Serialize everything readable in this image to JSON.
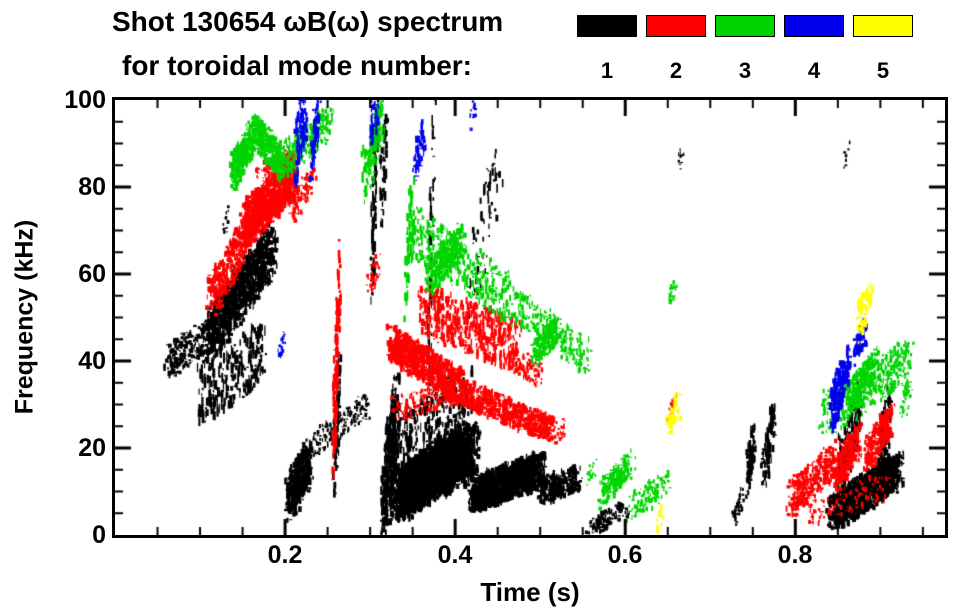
{
  "header": {
    "title_line1": "Shot 130654 ωB(ω) spectrum",
    "title_line2": "for toroidal mode number:"
  },
  "legend": {
    "items": [
      {
        "label": "1",
        "color": "#000000"
      },
      {
        "label": "2",
        "color": "#ff0000"
      },
      {
        "label": "3",
        "color": "#00d400"
      },
      {
        "label": "4",
        "color": "#0000ee"
      },
      {
        "label": "5",
        "color": "#ffff00"
      }
    ]
  },
  "axes": {
    "xlabel": "Time (s)",
    "ylabel": "Frequency (kHz)",
    "xtick_labels": [
      "0.2",
      "0.4",
      "0.6",
      "0.8"
    ],
    "ytick_labels": [
      "0",
      "20",
      "40",
      "60",
      "80",
      "100"
    ]
  },
  "chart_data": {
    "type": "scatter",
    "title": "Shot 130654 ωB(ω) spectrum for toroidal mode number",
    "xlabel": "Time (s)",
    "ylabel": "Frequency (kHz)",
    "xlim": [
      0,
      0.976
    ],
    "ylim": [
      0,
      100
    ],
    "xticks": [
      0.2,
      0.4,
      0.6,
      0.8
    ],
    "yticks": [
      0,
      20,
      40,
      60,
      80,
      100
    ],
    "x_minor_step": 0.05,
    "y_minor_step": 5,
    "grid": false,
    "legend_position": "top-right",
    "stroke_format": "[t_start,t_end,f_start,f_end,count,t_jitter,f_jitter,max_w_px,max_h_px]",
    "series": [
      {
        "name": "n=1",
        "color": "#000000",
        "strokes": [
          [
            0.062,
            0.115,
            40,
            46,
            260,
            0.005,
            4,
            3,
            4
          ],
          [
            0.112,
            0.185,
            46,
            66,
            1100,
            0.007,
            6,
            3,
            6
          ],
          [
            0.1,
            0.175,
            32,
            42,
            260,
            0.004,
            7,
            2,
            10
          ],
          [
            0.128,
            0.133,
            70,
            74,
            12,
            0.002,
            2,
            2,
            3
          ],
          [
            0.205,
            0.228,
            8,
            17,
            420,
            0.006,
            5,
            3,
            6
          ],
          [
            0.235,
            0.298,
            21,
            30,
            160,
            0.004,
            3,
            2,
            4
          ],
          [
            0.258,
            0.264,
            16,
            34,
            70,
            0.002,
            8,
            2,
            9
          ],
          [
            0.302,
            0.308,
            60,
            100,
            90,
            0.002,
            10,
            2,
            12
          ],
          [
            0.313,
            0.32,
            76,
            98,
            50,
            0.002,
            8,
            2,
            10
          ],
          [
            0.315,
            0.332,
            6,
            30,
            420,
            0.004,
            8,
            2,
            9
          ],
          [
            0.332,
            0.42,
            9,
            20,
            2600,
            0.01,
            6,
            3,
            7
          ],
          [
            0.335,
            0.415,
            22,
            33,
            260,
            0.008,
            6,
            2,
            9
          ],
          [
            0.42,
            0.5,
            9,
            15,
            1400,
            0.009,
            4,
            3,
            6
          ],
          [
            0.5,
            0.545,
            10,
            13,
            260,
            0.006,
            3,
            3,
            5
          ],
          [
            0.368,
            0.376,
            35,
            100,
            70,
            0.002,
            12,
            2,
            12
          ],
          [
            0.42,
            0.452,
            58,
            88,
            60,
            0.004,
            10,
            2,
            10
          ],
          [
            0.558,
            0.6,
            1,
            6,
            110,
            0.006,
            2,
            3,
            4
          ],
          [
            0.743,
            0.752,
            13,
            23,
            90,
            0.002,
            5,
            2,
            8
          ],
          [
            0.763,
            0.775,
            15,
            27,
            110,
            0.003,
            5,
            2,
            8
          ],
          [
            0.845,
            0.92,
            5,
            15,
            1300,
            0.009,
            4,
            3,
            6
          ],
          [
            0.853,
            0.878,
            16,
            30,
            150,
            0.004,
            6,
            2,
            9
          ],
          [
            0.898,
            0.912,
            17,
            30,
            90,
            0.003,
            6,
            2,
            8
          ],
          [
            0.663,
            0.668,
            85,
            88,
            10,
            0.002,
            2,
            2,
            3
          ],
          [
            0.858,
            0.863,
            86,
            89,
            8,
            0.002,
            2,
            2,
            3
          ],
          [
            0.728,
            0.737,
            4,
            9,
            40,
            0.003,
            2,
            2,
            4
          ]
        ]
      },
      {
        "name": "n=2",
        "color": "#ff0000",
        "strokes": [
          [
            0.112,
            0.158,
            54,
            70,
            380,
            0.005,
            5,
            3,
            5
          ],
          [
            0.152,
            0.212,
            71,
            83,
            950,
            0.006,
            5,
            3,
            6
          ],
          [
            0.168,
            0.205,
            83,
            87,
            70,
            0.004,
            2,
            2,
            4
          ],
          [
            0.205,
            0.232,
            74,
            82,
            90,
            0.005,
            3,
            2,
            5
          ],
          [
            0.257,
            0.264,
            20,
            60,
            160,
            0.002,
            9,
            2,
            10
          ],
          [
            0.298,
            0.31,
            57,
            62,
            45,
            0.003,
            3,
            2,
            4
          ],
          [
            0.325,
            0.405,
            44,
            34,
            800,
            0.006,
            4,
            3,
            6
          ],
          [
            0.33,
            0.4,
            29,
            33,
            160,
            0.006,
            3,
            2,
            4
          ],
          [
            0.405,
            0.515,
            33,
            24,
            700,
            0.006,
            3,
            3,
            5
          ],
          [
            0.36,
            0.475,
            52,
            43,
            520,
            0.005,
            6,
            2,
            8
          ],
          [
            0.468,
            0.5,
            40,
            37,
            90,
            0.004,
            3,
            2,
            4
          ],
          [
            0.795,
            0.85,
            8,
            18,
            320,
            0.006,
            4,
            3,
            5
          ],
          [
            0.848,
            0.875,
            14,
            22,
            260,
            0.004,
            4,
            3,
            5
          ],
          [
            0.884,
            0.913,
            18,
            27,
            260,
            0.004,
            4,
            3,
            5
          ],
          [
            0.815,
            0.905,
            5,
            11,
            110,
            0.008,
            3,
            2,
            4
          ],
          [
            0.651,
            0.659,
            28,
            31,
            25,
            0.002,
            2,
            2,
            3
          ],
          [
            0.522,
            0.529,
            23,
            25,
            25,
            0.002,
            2,
            2,
            3
          ]
        ]
      },
      {
        "name": "n=3",
        "color": "#00d400",
        "strokes": [
          [
            0.138,
            0.165,
            83,
            93,
            340,
            0.004,
            4,
            3,
            5
          ],
          [
            0.165,
            0.198,
            93,
            85,
            340,
            0.004,
            4,
            3,
            5
          ],
          [
            0.198,
            0.252,
            86,
            95,
            260,
            0.006,
            4,
            2,
            5
          ],
          [
            0.293,
            0.316,
            82,
            98,
            160,
            0.004,
            6,
            2,
            8
          ],
          [
            0.342,
            0.35,
            58,
            76,
            70,
            0.002,
            9,
            2,
            10
          ],
          [
            0.35,
            0.47,
            70,
            53,
            380,
            0.006,
            6,
            2,
            6
          ],
          [
            0.368,
            0.408,
            59,
            68,
            260,
            0.005,
            4,
            3,
            5
          ],
          [
            0.47,
            0.555,
            53,
            41,
            260,
            0.006,
            4,
            2,
            5
          ],
          [
            0.493,
            0.518,
            42,
            47,
            170,
            0.004,
            3,
            3,
            5
          ],
          [
            0.573,
            0.608,
            9,
            17,
            170,
            0.005,
            3,
            3,
            5
          ],
          [
            0.606,
            0.648,
            6,
            12,
            130,
            0.006,
            3,
            2,
            4
          ],
          [
            0.652,
            0.659,
            54,
            57,
            30,
            0.002,
            2,
            2,
            4
          ],
          [
            0.835,
            0.935,
            28,
            40,
            420,
            0.008,
            5,
            2,
            5
          ],
          [
            0.862,
            0.896,
            31,
            39,
            220,
            0.005,
            4,
            3,
            5
          ],
          [
            0.925,
            0.935,
            29,
            33,
            40,
            0.003,
            3,
            2,
            4
          ],
          [
            0.555,
            0.565,
            13,
            16,
            20,
            0.002,
            2,
            2,
            3
          ]
        ]
      },
      {
        "name": "n=4",
        "color": "#0000ee",
        "strokes": [
          [
            0.213,
            0.225,
            88,
            100,
            90,
            0.002,
            8,
            2,
            10
          ],
          [
            0.229,
            0.24,
            86,
            96,
            60,
            0.003,
            6,
            2,
            8
          ],
          [
            0.3,
            0.309,
            93,
            100,
            40,
            0.002,
            5,
            2,
            7
          ],
          [
            0.352,
            0.363,
            84,
            92,
            60,
            0.003,
            5,
            2,
            7
          ],
          [
            0.193,
            0.2,
            42,
            46,
            25,
            0.002,
            2,
            2,
            4
          ],
          [
            0.843,
            0.853,
            28,
            35,
            110,
            0.002,
            5,
            3,
            8
          ],
          [
            0.853,
            0.863,
            33,
            40,
            90,
            0.002,
            4,
            3,
            7
          ],
          [
            0.87,
            0.882,
            42,
            47,
            70,
            0.003,
            3,
            3,
            6
          ],
          [
            0.418,
            0.424,
            95,
            99,
            15,
            0.002,
            2,
            2,
            4
          ]
        ]
      },
      {
        "name": "n=5",
        "color": "#ffff00",
        "strokes": [
          [
            0.65,
            0.663,
            25,
            30,
            50,
            0.003,
            3,
            3,
            5
          ],
          [
            0.873,
            0.888,
            48,
            55,
            70,
            0.003,
            4,
            3,
            6
          ],
          [
            0.636,
            0.645,
            2,
            6,
            20,
            0.002,
            2,
            2,
            4
          ]
        ]
      }
    ]
  }
}
